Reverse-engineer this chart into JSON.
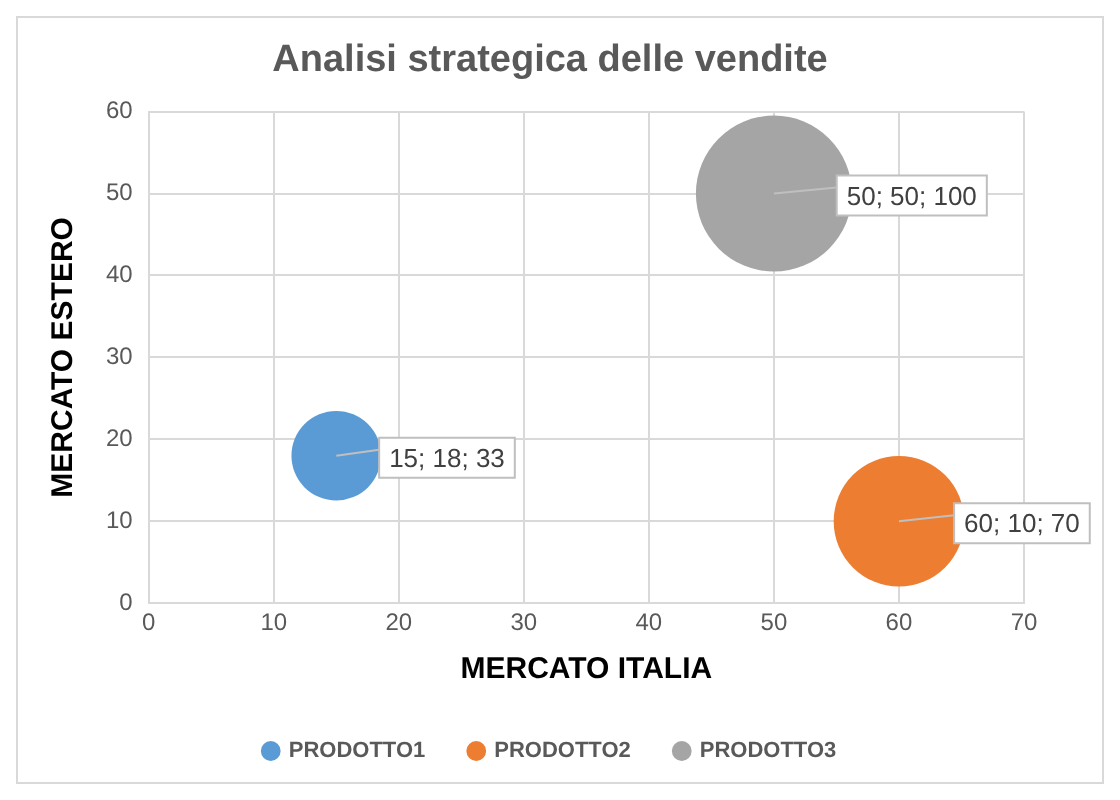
{
  "chart_data": {
    "type": "bubble",
    "title": "Analisi strategica delle vendite",
    "xlabel": "MERCATO ITALIA",
    "ylabel": "MERCATO ESTERO",
    "series": [
      {
        "name": "PRODOTTO1",
        "color": "#5b9bd5",
        "x": [
          15
        ],
        "values": [
          18
        ],
        "sizes": [
          0.33
        ],
        "value_labels": [
          "15; 18; 33"
        ]
      },
      {
        "name": "PRODOTTO2",
        "color": "#ed7d31",
        "x": [
          60
        ],
        "values": [
          10
        ],
        "sizes": [
          0.7
        ],
        "value_labels": [
          "60; 10; 70"
        ]
      },
      {
        "name": "PRODOTTO3",
        "color": "#a5a5a5",
        "x": [
          50
        ],
        "values": [
          50
        ],
        "sizes": [
          1
        ],
        "value_labels": [
          "50; 50; 100"
        ]
      }
    ],
    "xlim": [
      0,
      70
    ],
    "xticks": [
      0,
      10,
      20,
      30,
      40,
      50,
      60,
      70
    ],
    "ylim": [
      0,
      60
    ],
    "yticks": [
      0,
      10,
      20,
      30,
      40,
      50,
      60
    ],
    "grid": true,
    "legend": "bottom"
  }
}
